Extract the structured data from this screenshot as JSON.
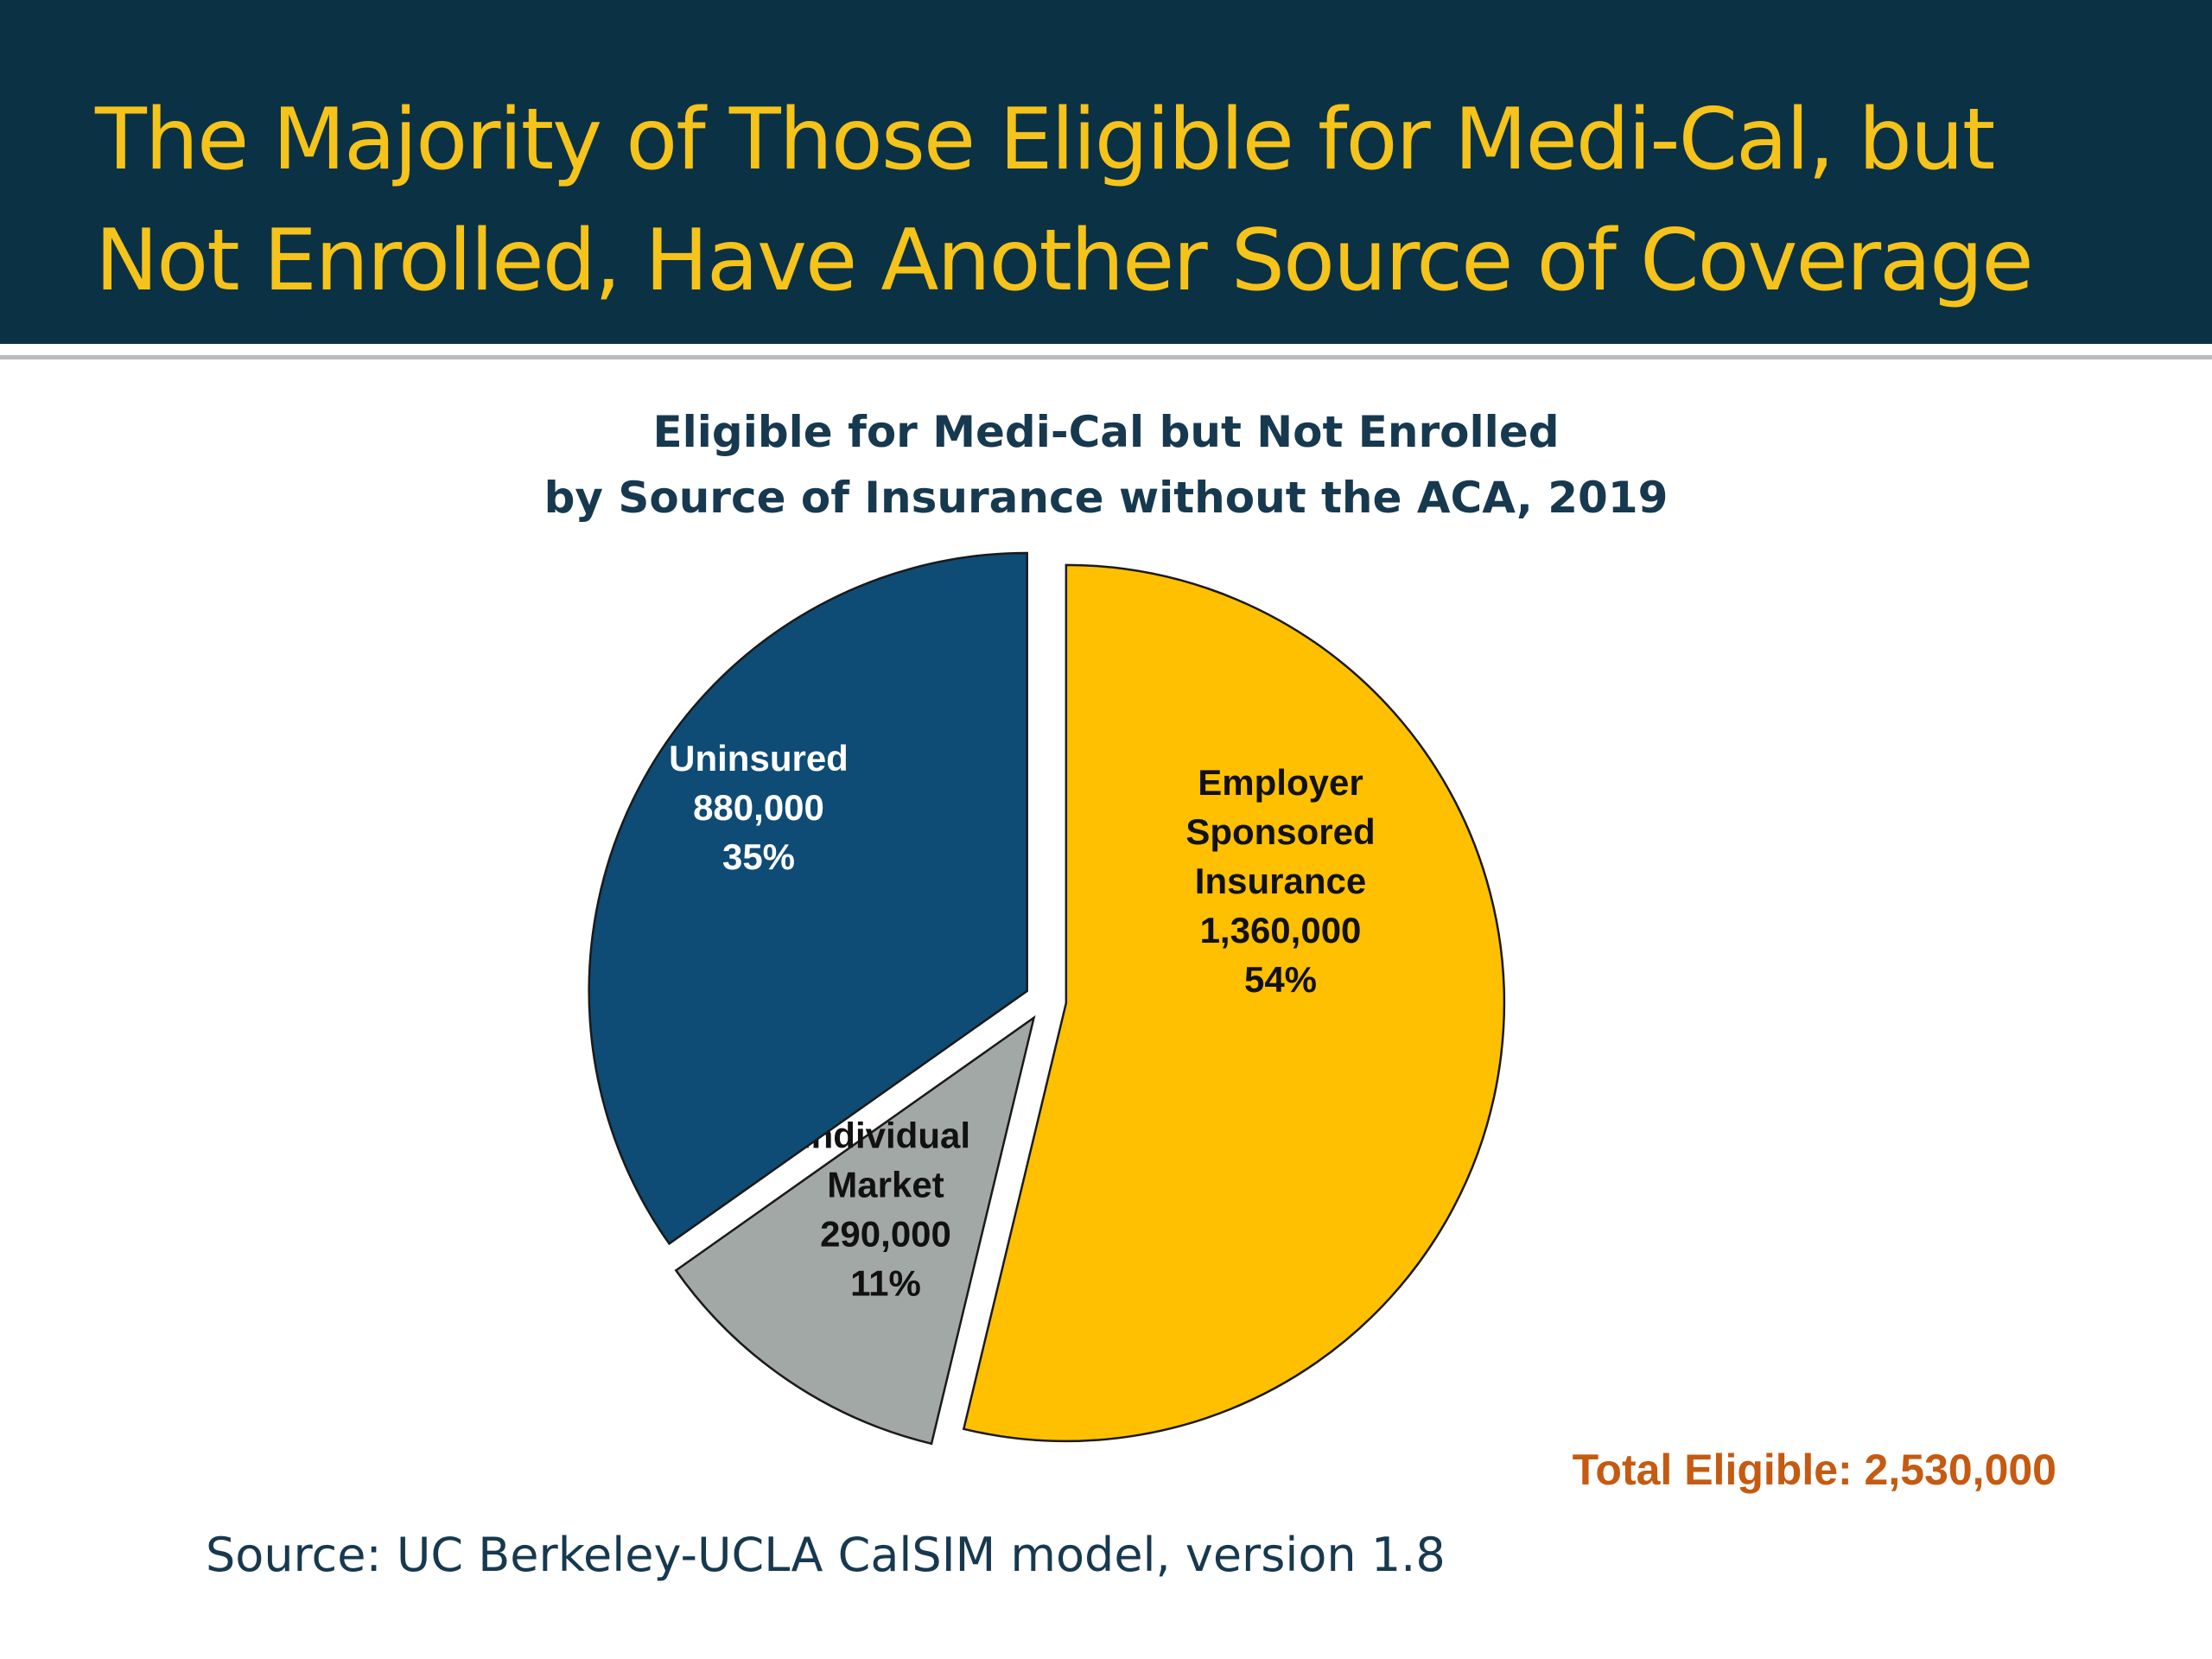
{
  "slide": {
    "title_line1": "The Majority of Those Eligible for Medi-Cal, but",
    "title_line2": "Not Enrolled, Have Another Source of Coverage",
    "source": "Source: UC Berkeley-UCLA CalSIM model, version 1.8"
  },
  "colors": {
    "banner": "#0b3145",
    "title_text": "#f6c31a",
    "total_text": "#c55a11"
  },
  "chart_data": {
    "type": "pie",
    "title_line1": "Eligible for Medi-Cal but Not Enrolled",
    "title_line2": "by Source of Insurance without the ACA, 2019",
    "total_label": "Total Eligible: 2,530,000",
    "slices": [
      {
        "name": "Employer Sponsored Insurance",
        "label_lines": [
          "Employer",
          "Sponsored",
          "Insurance"
        ],
        "value": 1360000,
        "value_label": "1,360,000",
        "percent": 54,
        "percent_label": "54%",
        "color": "#fec000",
        "text_color": "#111111"
      },
      {
        "name": "Individual Market",
        "label_lines": [
          "Individual",
          "Market"
        ],
        "value": 290000,
        "value_label": "290,000",
        "percent": 11,
        "percent_label": "11%",
        "color": "#a2a8a6",
        "text_color": "#111111"
      },
      {
        "name": "Uninsured",
        "label_lines": [
          "Uninsured"
        ],
        "value": 880000,
        "value_label": "880,000",
        "percent": 35,
        "percent_label": "35%",
        "color": "#0e4b75",
        "text_color": "#ffffff"
      }
    ]
  }
}
